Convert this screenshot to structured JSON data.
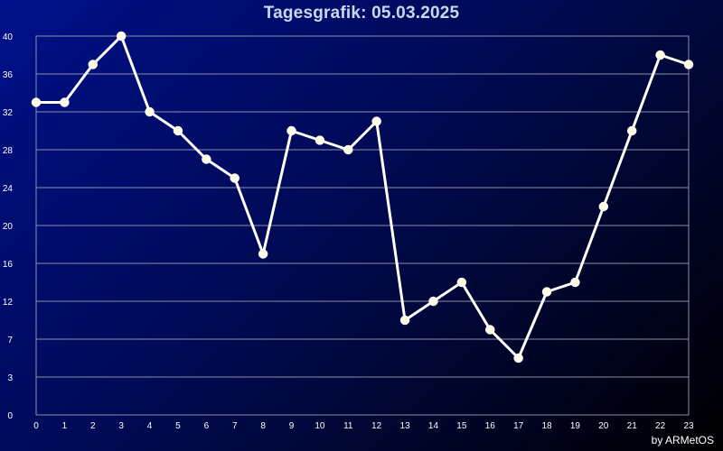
{
  "title": "Tagesgrafik: 05.03.2025",
  "credit": "by ARMetOS",
  "colors": {
    "background_start": "#00108a",
    "background_end": "#000000",
    "line": "#ffffff",
    "marker": "#fffde6",
    "grid": "#8a8fa8",
    "axis_text": "#ffffff"
  },
  "chart_data": {
    "type": "line",
    "x": [
      0,
      1,
      2,
      3,
      4,
      5,
      6,
      7,
      8,
      9,
      10,
      11,
      12,
      13,
      14,
      15,
      16,
      17,
      18,
      19,
      20,
      21,
      22,
      23
    ],
    "y_tick_labels": [
      "0",
      "3",
      "7",
      "12",
      "16",
      "20",
      "24",
      "28",
      "32",
      "36",
      "40"
    ],
    "x_tick_labels": [
      "0",
      "1",
      "2",
      "3",
      "4",
      "5",
      "6",
      "7",
      "8",
      "9",
      "10",
      "11",
      "12",
      "13",
      "14",
      "15",
      "16",
      "17",
      "18",
      "19",
      "20",
      "21",
      "22",
      "23"
    ],
    "series": [
      {
        "values": [
          33,
          33,
          37,
          40,
          32,
          30,
          27,
          25,
          17,
          30,
          29,
          28,
          31,
          10,
          12,
          14,
          9,
          6,
          13,
          14,
          22,
          30,
          38,
          37
        ]
      }
    ],
    "ylim": [
      0,
      40
    ],
    "xlim": [
      0,
      23
    ],
    "grid": true,
    "markers": true
  }
}
